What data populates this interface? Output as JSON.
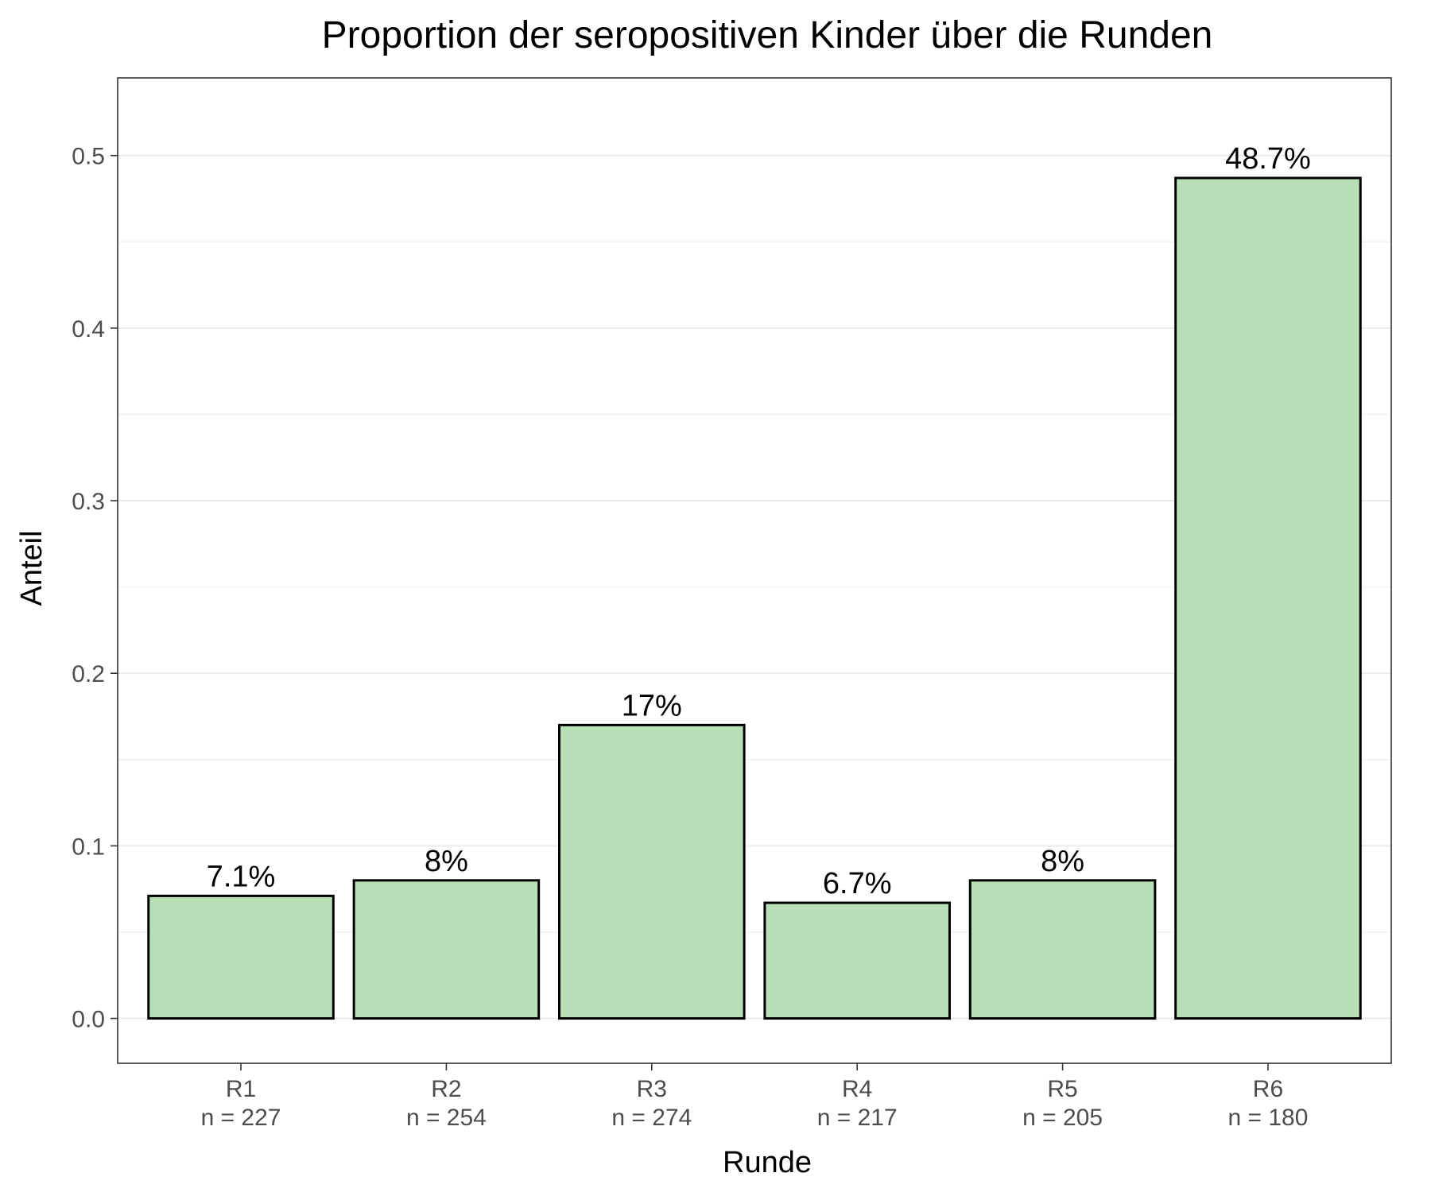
{
  "chart_data": {
    "type": "bar",
    "title": "Proportion der seropositiven Kinder über die Runden",
    "xlabel": "Runde",
    "ylabel": "Anteil",
    "categories": [
      "R1",
      "R2",
      "R3",
      "R4",
      "R5",
      "R6"
    ],
    "category_sublabels": [
      "n = 227",
      "n = 254",
      "n = 274",
      "n = 217",
      "n = 205",
      "n = 180"
    ],
    "values": [
      0.071,
      0.08,
      0.17,
      0.067,
      0.08,
      0.487
    ],
    "data_labels": [
      "7.1%",
      "8%",
      "17%",
      "6.7%",
      "8%",
      "48.7%"
    ],
    "ylim": [
      -0.026,
      0.545
    ],
    "yticks": [
      0.0,
      0.1,
      0.2,
      0.3,
      0.4,
      0.5
    ],
    "ytick_labels": [
      "0.0",
      "0.1",
      "0.2",
      "0.3",
      "0.4",
      "0.5"
    ],
    "grid": true,
    "legend": "none",
    "colors": {
      "bar_fill": "#b9dfb7",
      "bar_stroke": "#000000",
      "grid_major": "#ebebeb",
      "grid_minor": "#f2f2f2",
      "panel_border": "#333333",
      "axis_text": "#4d4d4d",
      "title_text": "#000000"
    }
  }
}
